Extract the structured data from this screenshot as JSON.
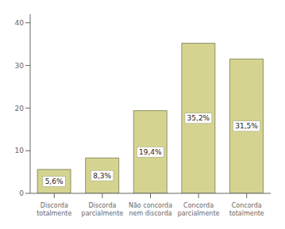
{
  "chart_data": {
    "type": "bar",
    "categories": [
      "Discorda\ntotalmente",
      "Discorda\nparcialmente",
      "Não concorda\nnem discorda",
      "Concorda\nparcialmente",
      "Concorda\ntotalmente"
    ],
    "values": [
      5.6,
      8.3,
      19.4,
      35.2,
      31.5
    ],
    "value_labels": [
      "5,6%",
      "8,3%",
      "19,4%",
      "35,2%",
      "31,5%"
    ],
    "data_labels": true,
    "color": "#d4d490",
    "ylim": [
      0,
      42
    ],
    "yticks": [
      0,
      10,
      20,
      30,
      40
    ],
    "grid": false
  }
}
